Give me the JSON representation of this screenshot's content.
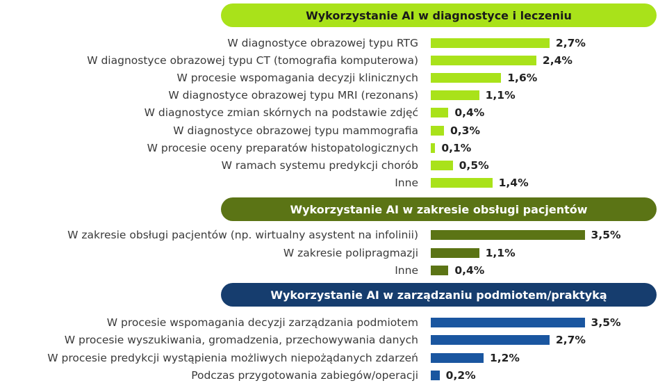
{
  "chart_data": [
    {
      "type": "bar",
      "orientation": "horizontal",
      "title": "Wykorzystanie AI w diagnostyce i leczeniu",
      "color": "#a9e21a",
      "title_text_color": "#1a1a1a",
      "value_suffix": "%",
      "categories": [
        "W diagnostyce obrazowej typu RTG",
        "W diagnostyce obrazowej typu CT (tomografia komputerowa)",
        "W procesie wspomagania decyzji klinicznych",
        "W diagnostyce obrazowej typu MRI (rezonans)",
        "W diagnostyce zmian skórnych na podstawie zdjęć",
        "W diagnostyce obrazowej typu mammografia",
        "W procesie oceny preparatów histopatologicznych",
        "W ramach systemu predykcji chorób",
        "Inne"
      ],
      "values": [
        2.7,
        2.4,
        1.6,
        1.1,
        0.4,
        0.3,
        0.1,
        0.5,
        1.4
      ],
      "value_labels": [
        "2,7%",
        "2,4%",
        "1,6%",
        "1,1%",
        "0,4%",
        "0,3%",
        "0,1%",
        "0,5%",
        "1,4%"
      ]
    },
    {
      "type": "bar",
      "orientation": "horizontal",
      "title": "Wykorzystanie AI w zakresie obsługi pacjentów",
      "color": "#5b7415",
      "title_text_color": "#ffffff",
      "value_suffix": "%",
      "categories": [
        "W zakresie obsługi pacjentów (np. wirtualny asystent na infolinii)",
        "W zakresie polipragmazji",
        "Inne"
      ],
      "values": [
        3.5,
        1.1,
        0.4
      ],
      "value_labels": [
        "3,5%",
        "1,1%",
        "0,4%"
      ]
    },
    {
      "type": "bar",
      "orientation": "horizontal",
      "title": "Wykorzystanie AI w zarządzaniu podmiotem/praktyką",
      "color": "#1a56a0",
      "header_color": "#163d6e",
      "title_text_color": "#ffffff",
      "value_suffix": "%",
      "categories": [
        "W procesie wspomagania decyzji zarządzania podmiotem",
        "W procesie wyszukiwania, gromadzenia, przechowywania danych",
        "W procesie predykcji wystąpienia możliwych niepożądanych zdarzeń",
        "Podczas przygotowania zabiegów/operacji"
      ],
      "values": [
        3.5,
        2.7,
        1.2,
        0.2
      ],
      "value_labels": [
        "3,5%",
        "2,7%",
        "1,2%",
        "0,2%"
      ]
    }
  ]
}
